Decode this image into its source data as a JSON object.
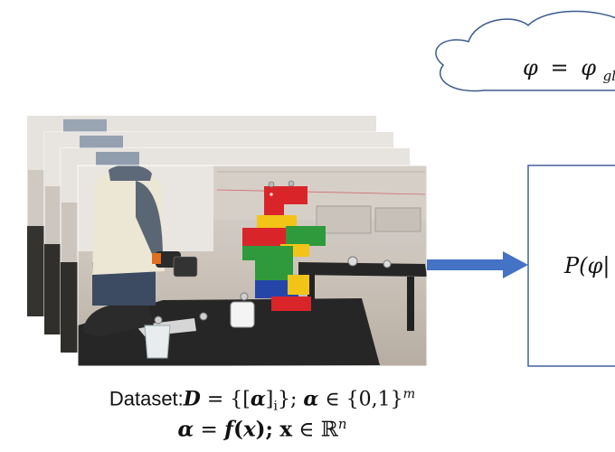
{
  "cloud": {
    "formula_head": "φ",
    "formula_eq": "=",
    "formula_rhs_base": "φ",
    "formula_rhs_sub": "gl"
  },
  "box": {
    "formula_head": "P(φ|"
  },
  "caption": {
    "line1": {
      "prefix": "Dataset:",
      "D": "D",
      "eq": " = {[",
      "alpha": "α",
      "close": "]",
      "sub_i": "i",
      "after": "};",
      "alpha2": "α",
      "in": " ∈ {0,1}",
      "sup_m": "m"
    },
    "line2": {
      "alpha": "α",
      "eq": " = ",
      "f": "f",
      "paren_open": "(",
      "x": "x",
      "paren_close": ");",
      "bx": "x",
      "in": " ∈ ℝ",
      "sup_n": "n"
    }
  },
  "colors": {
    "cloud_stroke": "#3a5a8c",
    "arrow": "#4472c4",
    "box_stroke": "#41619a",
    "table": "#2b2b2b",
    "lego_red": "#d9252a",
    "lego_green": "#2e9a3c",
    "lego_yellow": "#f2c418",
    "lego_blue": "#2546a8"
  }
}
